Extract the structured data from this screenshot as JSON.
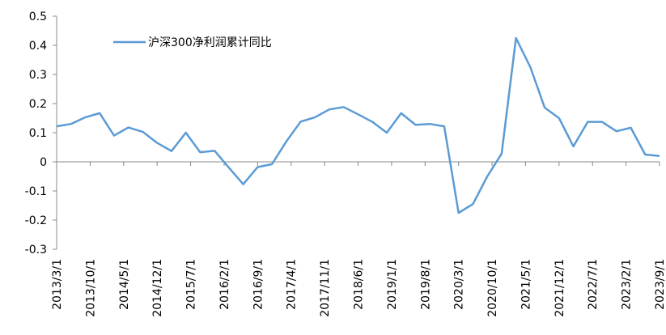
{
  "chart_data": {
    "type": "line",
    "x": [
      "2013/3/1",
      "2013/6/1",
      "2013/9/1",
      "2013/12/1",
      "2014/3/1",
      "2014/6/1",
      "2014/9/1",
      "2014/12/1",
      "2015/3/1",
      "2015/6/1",
      "2015/9/1",
      "2015/12/1",
      "2016/3/1",
      "2016/6/1",
      "2016/9/1",
      "2016/12/1",
      "2017/3/1",
      "2017/6/1",
      "2017/9/1",
      "2017/12/1",
      "2018/3/1",
      "2018/6/1",
      "2018/9/1",
      "2018/12/1",
      "2019/3/1",
      "2019/6/1",
      "2019/9/1",
      "2019/12/1",
      "2020/3/1",
      "2020/6/1",
      "2020/9/1",
      "2020/12/1",
      "2021/3/1",
      "2021/6/1",
      "2021/9/1",
      "2021/12/1",
      "2022/3/1",
      "2022/6/1",
      "2022/9/1",
      "2022/12/1",
      "2023/3/1",
      "2023/6/1",
      "2023/9/1"
    ],
    "series": [
      {
        "name": "沪深300净利润累计同比",
        "color": "#5b9bd5",
        "values": [
          0.122,
          0.13,
          0.153,
          0.167,
          0.09,
          0.118,
          0.103,
          0.065,
          0.037,
          0.1,
          0.033,
          0.038,
          -0.02,
          -0.077,
          -0.018,
          -0.008,
          0.07,
          0.138,
          0.153,
          0.18,
          0.188,
          0.163,
          0.137,
          0.1,
          0.167,
          0.127,
          0.13,
          0.122,
          -0.175,
          -0.145,
          -0.05,
          0.028,
          0.425,
          0.325,
          0.186,
          0.15,
          0.053,
          0.137,
          0.137,
          0.105,
          0.117,
          0.025,
          0.02
        ]
      }
    ],
    "xlim": [
      "2013/3/1",
      "2023/9/1"
    ],
    "xticks": [
      "2013/3/1",
      "2013/10/1",
      "2014/5/1",
      "2014/12/1",
      "2015/7/1",
      "2016/2/1",
      "2016/9/1",
      "2017/4/1",
      "2017/11/1",
      "2018/6/1",
      "2019/1/1",
      "2019/8/1",
      "2020/3/1",
      "2020/10/1",
      "2021/5/1",
      "2021/12/1",
      "2022/7/1",
      "2023/2/1",
      "2023/9/1"
    ],
    "ylim": [
      -0.3,
      0.5
    ],
    "yticks": [
      0.5,
      0.4,
      0.3,
      0.2,
      0.1,
      0,
      -0.1,
      -0.2,
      -0.3
    ],
    "legend": "top-left"
  }
}
